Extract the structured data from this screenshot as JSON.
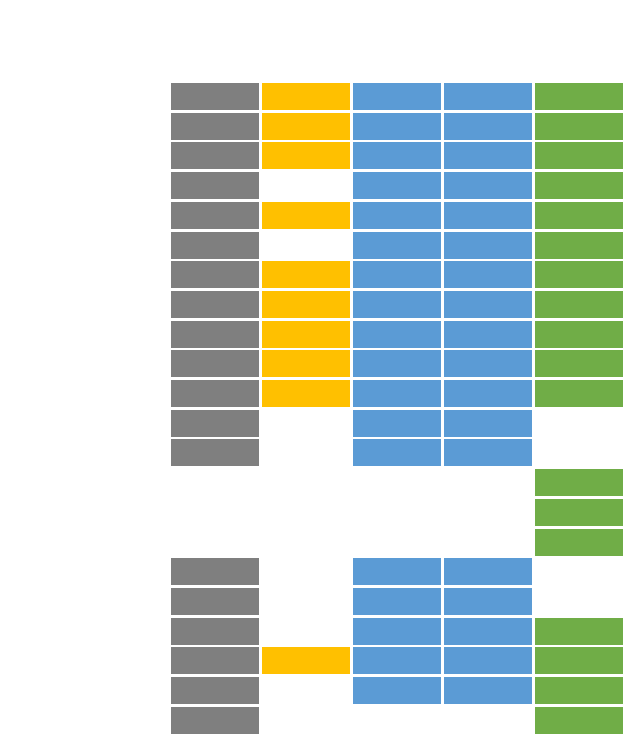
{
  "colors": {
    "gray": "#7f7f7f",
    "gold": "#ffc000",
    "blue": "#5b9bd5",
    "green": "#70ad47"
  },
  "columns": [
    "gray",
    "gold",
    "blue",
    "blue",
    "green"
  ],
  "rows": [
    [
      1,
      1,
      1,
      1,
      1
    ],
    [
      1,
      1,
      1,
      1,
      1
    ],
    [
      1,
      1,
      1,
      1,
      1
    ],
    [
      1,
      0,
      1,
      1,
      1
    ],
    [
      1,
      1,
      1,
      1,
      1
    ],
    [
      1,
      0,
      1,
      1,
      1
    ],
    [
      1,
      1,
      1,
      1,
      1
    ],
    [
      1,
      1,
      1,
      1,
      1
    ],
    [
      1,
      1,
      1,
      1,
      1
    ],
    [
      1,
      1,
      1,
      1,
      1
    ],
    [
      1,
      1,
      1,
      1,
      1
    ],
    [
      1,
      0,
      1,
      1,
      0
    ],
    [
      1,
      0,
      1,
      1,
      0
    ],
    [
      0,
      0,
      0,
      0,
      1
    ],
    [
      0,
      0,
      0,
      0,
      1
    ],
    [
      0,
      0,
      0,
      0,
      1
    ],
    [
      1,
      0,
      1,
      1,
      0
    ],
    [
      1,
      0,
      1,
      1,
      0
    ],
    [
      1,
      0,
      1,
      1,
      1
    ],
    [
      1,
      1,
      1,
      1,
      1
    ],
    [
      1,
      0,
      1,
      1,
      1
    ],
    [
      1,
      0,
      0,
      0,
      1
    ]
  ]
}
